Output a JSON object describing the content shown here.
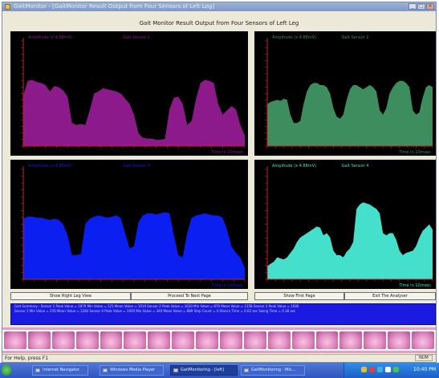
{
  "window": {
    "title": "GaitMonitor - [GaitMonitor Result Output from Four Sensors of Left Leg]"
  },
  "main_title": "Gait Monitor Result Output from Four Sensors of Left Leg",
  "colors": {
    "panel_bg": "#000000",
    "axis": "#cc2020",
    "s1": "#8c1a8a",
    "s2": "#3d8d5e",
    "s3": "#0a1ff0",
    "s4": "#44e0cc"
  },
  "charts": [
    {
      "amplitude_label": "Amplitude (x 4.88mV)",
      "sensor_label": "Gait Sensor 1",
      "x_label": "Time  in 10msec",
      "color": "#8c1a8a"
    },
    {
      "amplitude_label": "Amplitude (x 4.88mV)",
      "sensor_label": "Gait Sensor 2",
      "x_label": "Time  in 10msec",
      "color": "#3d8d5e"
    },
    {
      "amplitude_label": "Amplitude (x 4.88mV)",
      "sensor_label": "Gait Sensor 3",
      "x_label": "Time  in 10msec",
      "color": "#0a1ff0"
    },
    {
      "amplitude_label": "Amplitude (x 4.88mV)",
      "sensor_label": "Gait Sensor 4",
      "x_label": "Time  in 10msec",
      "color": "#44e0cc"
    }
  ],
  "chart_data": [
    {
      "type": "area",
      "title": "Gait Sensor 1",
      "ylabel": "Amplitude (x 4.88mV)",
      "xlabel": "Time  in 10msec",
      "ylim": [
        0,
        1
      ],
      "x": [
        0,
        2,
        4,
        6,
        8,
        10,
        12,
        14,
        16,
        18,
        20,
        22,
        24,
        26,
        28,
        30,
        32,
        34,
        36,
        38,
        40,
        42,
        44,
        46,
        48,
        50,
        52,
        54,
        56,
        58,
        60,
        62,
        64,
        66,
        68,
        70,
        72,
        74,
        76,
        78,
        80,
        82,
        84,
        86,
        88,
        90,
        92,
        94,
        96,
        98,
        100
      ],
      "values": [
        0.48,
        0.62,
        0.63,
        0.61,
        0.6,
        0.58,
        0.52,
        0.57,
        0.56,
        0.53,
        0.47,
        0.22,
        0.2,
        0.21,
        0.2,
        0.34,
        0.5,
        0.52,
        0.55,
        0.54,
        0.53,
        0.52,
        0.5,
        0.45,
        0.4,
        0.3,
        0.12,
        0.08,
        0.07,
        0.07,
        0.06,
        0.06,
        0.07,
        0.35,
        0.46,
        0.47,
        0.4,
        0.2,
        0.24,
        0.45,
        0.6,
        0.63,
        0.62,
        0.6,
        0.4,
        0.3,
        0.34,
        0.38,
        0.35,
        0.2,
        0.1
      ]
    },
    {
      "type": "area",
      "title": "Gait Sensor 2",
      "ylabel": "Amplitude (x 4.88mV)",
      "xlabel": "Time  in 10msec",
      "ylim": [
        0,
        1
      ],
      "x": [
        0,
        2,
        4,
        6,
        8,
        10,
        12,
        14,
        16,
        18,
        20,
        22,
        24,
        26,
        28,
        30,
        32,
        34,
        36,
        38,
        40,
        42,
        44,
        46,
        48,
        50,
        52,
        54,
        56,
        58,
        60,
        62,
        64,
        66,
        68,
        70,
        72,
        74,
        76,
        78,
        80,
        82,
        84,
        86,
        88,
        90,
        92,
        94,
        96,
        98,
        100
      ],
      "values": [
        0.4,
        0.42,
        0.43,
        0.44,
        0.43,
        0.45,
        0.44,
        0.3,
        0.22,
        0.22,
        0.24,
        0.4,
        0.52,
        0.58,
        0.6,
        0.6,
        0.58,
        0.58,
        0.56,
        0.5,
        0.36,
        0.28,
        0.26,
        0.3,
        0.44,
        0.54,
        0.58,
        0.58,
        0.56,
        0.54,
        0.56,
        0.58,
        0.56,
        0.52,
        0.34,
        0.3,
        0.36,
        0.5,
        0.56,
        0.6,
        0.62,
        0.62,
        0.6,
        0.56,
        0.34,
        0.3,
        0.32,
        0.46,
        0.56,
        0.58,
        0.56
      ]
    },
    {
      "type": "area",
      "title": "Gait Sensor 3",
      "ylabel": "Amplitude (x 4.88mV)",
      "xlabel": "Time  in 10msec",
      "ylim": [
        0,
        1
      ],
      "x": [
        0,
        2,
        4,
        6,
        8,
        10,
        12,
        14,
        16,
        18,
        20,
        22,
        24,
        26,
        28,
        30,
        32,
        34,
        36,
        38,
        40,
        42,
        44,
        46,
        48,
        50,
        52,
        54,
        56,
        58,
        60,
        62,
        64,
        66,
        68,
        70,
        72,
        74,
        76,
        78,
        80,
        82,
        84,
        86,
        88,
        90,
        92,
        94,
        96,
        98,
        100
      ],
      "values": [
        0.55,
        0.57,
        0.57,
        0.56,
        0.56,
        0.55,
        0.54,
        0.55,
        0.54,
        0.5,
        0.4,
        0.22,
        0.22,
        0.23,
        0.5,
        0.55,
        0.57,
        0.58,
        0.57,
        0.56,
        0.57,
        0.58,
        0.56,
        0.42,
        0.28,
        0.3,
        0.52,
        0.58,
        0.6,
        0.6,
        0.59,
        0.6,
        0.61,
        0.6,
        0.4,
        0.22,
        0.2,
        0.42,
        0.56,
        0.58,
        0.59,
        0.6,
        0.59,
        0.58,
        0.58,
        0.56,
        0.45,
        0.3,
        0.24,
        0.2,
        0.1
      ]
    },
    {
      "type": "area",
      "title": "Gait Sensor 4",
      "ylabel": "Amplitude (x 4.88mV)",
      "xlabel": "Time  in 10msec",
      "ylim": [
        0,
        1
      ],
      "x": [
        0,
        2,
        4,
        6,
        8,
        10,
        12,
        14,
        16,
        18,
        20,
        22,
        24,
        26,
        28,
        30,
        32,
        34,
        36,
        38,
        40,
        42,
        44,
        46,
        48,
        50,
        52,
        54,
        56,
        58,
        60,
        62,
        64,
        66,
        68,
        70,
        72,
        74,
        76,
        78,
        80,
        82,
        84,
        86,
        88,
        90,
        92,
        94,
        96,
        98,
        100
      ],
      "values": [
        0.12,
        0.14,
        0.16,
        0.2,
        0.19,
        0.18,
        0.2,
        0.24,
        0.28,
        0.34,
        0.38,
        0.4,
        0.42,
        0.44,
        0.46,
        0.48,
        0.47,
        0.4,
        0.42,
        0.38,
        0.26,
        0.22,
        0.22,
        0.2,
        0.25,
        0.28,
        0.34,
        0.64,
        0.68,
        0.7,
        0.69,
        0.68,
        0.66,
        0.64,
        0.6,
        0.42,
        0.4,
        0.42,
        0.42,
        0.36,
        0.26,
        0.22,
        0.24,
        0.25,
        0.26,
        0.3,
        0.38,
        0.44,
        0.47,
        0.5,
        0.45
      ]
    }
  ],
  "buttons": {
    "show_right": "Show Right Leg View",
    "next_page": "Proceed To Next Page",
    "first_page": "Show First Page",
    "exit": "Exit The Analyser"
  },
  "status_panel": {
    "line1": "Gait Summary :  Sensor 1 Peak Value = 1879  Min Value = 125  Mean Value = 1019  Sensor 2 Peak Value = 1620  Min Value = 870  Mean Value = 1358  Sensor 3 Peak Value = 1640",
    "line2": "Sensor 3 Min Value = 250  Mean Value = 1284  Sensor 4 Peak Value = 1920  Min Value = 340  Mean Value = 889  Step Count = 4  Stance Time = 0.62 sec  Swing Time = 0.38 sec"
  },
  "statusbar": {
    "help": "For Help, press F1",
    "num": "NUM"
  },
  "taskbar": {
    "items": [
      "Internet Navigator",
      "Windows Media Player",
      "GaitMonitoring - [left]",
      "GaitMonitoring - Mic..."
    ],
    "clock": "10:40 PM"
  }
}
